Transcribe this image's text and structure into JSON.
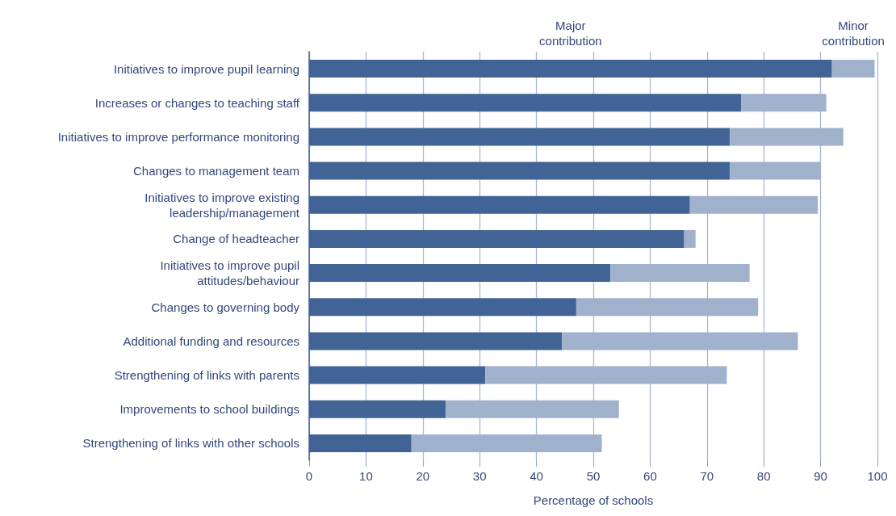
{
  "chart_data": {
    "type": "bar",
    "orientation": "horizontal",
    "stacked": true,
    "xlabel": "Percentage of schools",
    "categories": [
      "Initiatives to improve pupil learning",
      "Increases or changes to teaching staff",
      "Initiatives to improve performance monitoring",
      "Changes to management team",
      "Initiatives to improve existing\nleadership/management",
      "Change of headteacher",
      "Initiatives to improve pupil\nattitudes/behaviour",
      "Changes to governing body",
      "Additional funding and resources",
      "Strengthening of links with parents",
      "Improvements to school buildings",
      "Strengthening of links with other schools"
    ],
    "series": [
      {
        "name": "Major\ncontribution",
        "color": "#416395",
        "values": [
          92,
          76,
          74,
          74,
          67,
          66,
          53,
          47,
          44.5,
          31,
          24,
          18
        ]
      },
      {
        "name": "Minor\ncontribution",
        "color": "#a0b1cb",
        "values": [
          7.5,
          15,
          20,
          16,
          22.5,
          2,
          24.5,
          32,
          41.5,
          42.5,
          30.5,
          33.5
        ]
      }
    ],
    "xlim": [
      0,
      100
    ],
    "xticks": [
      0,
      10,
      20,
      30,
      40,
      50,
      60,
      70,
      80,
      90,
      100
    ],
    "grid": "x",
    "legend": false
  }
}
